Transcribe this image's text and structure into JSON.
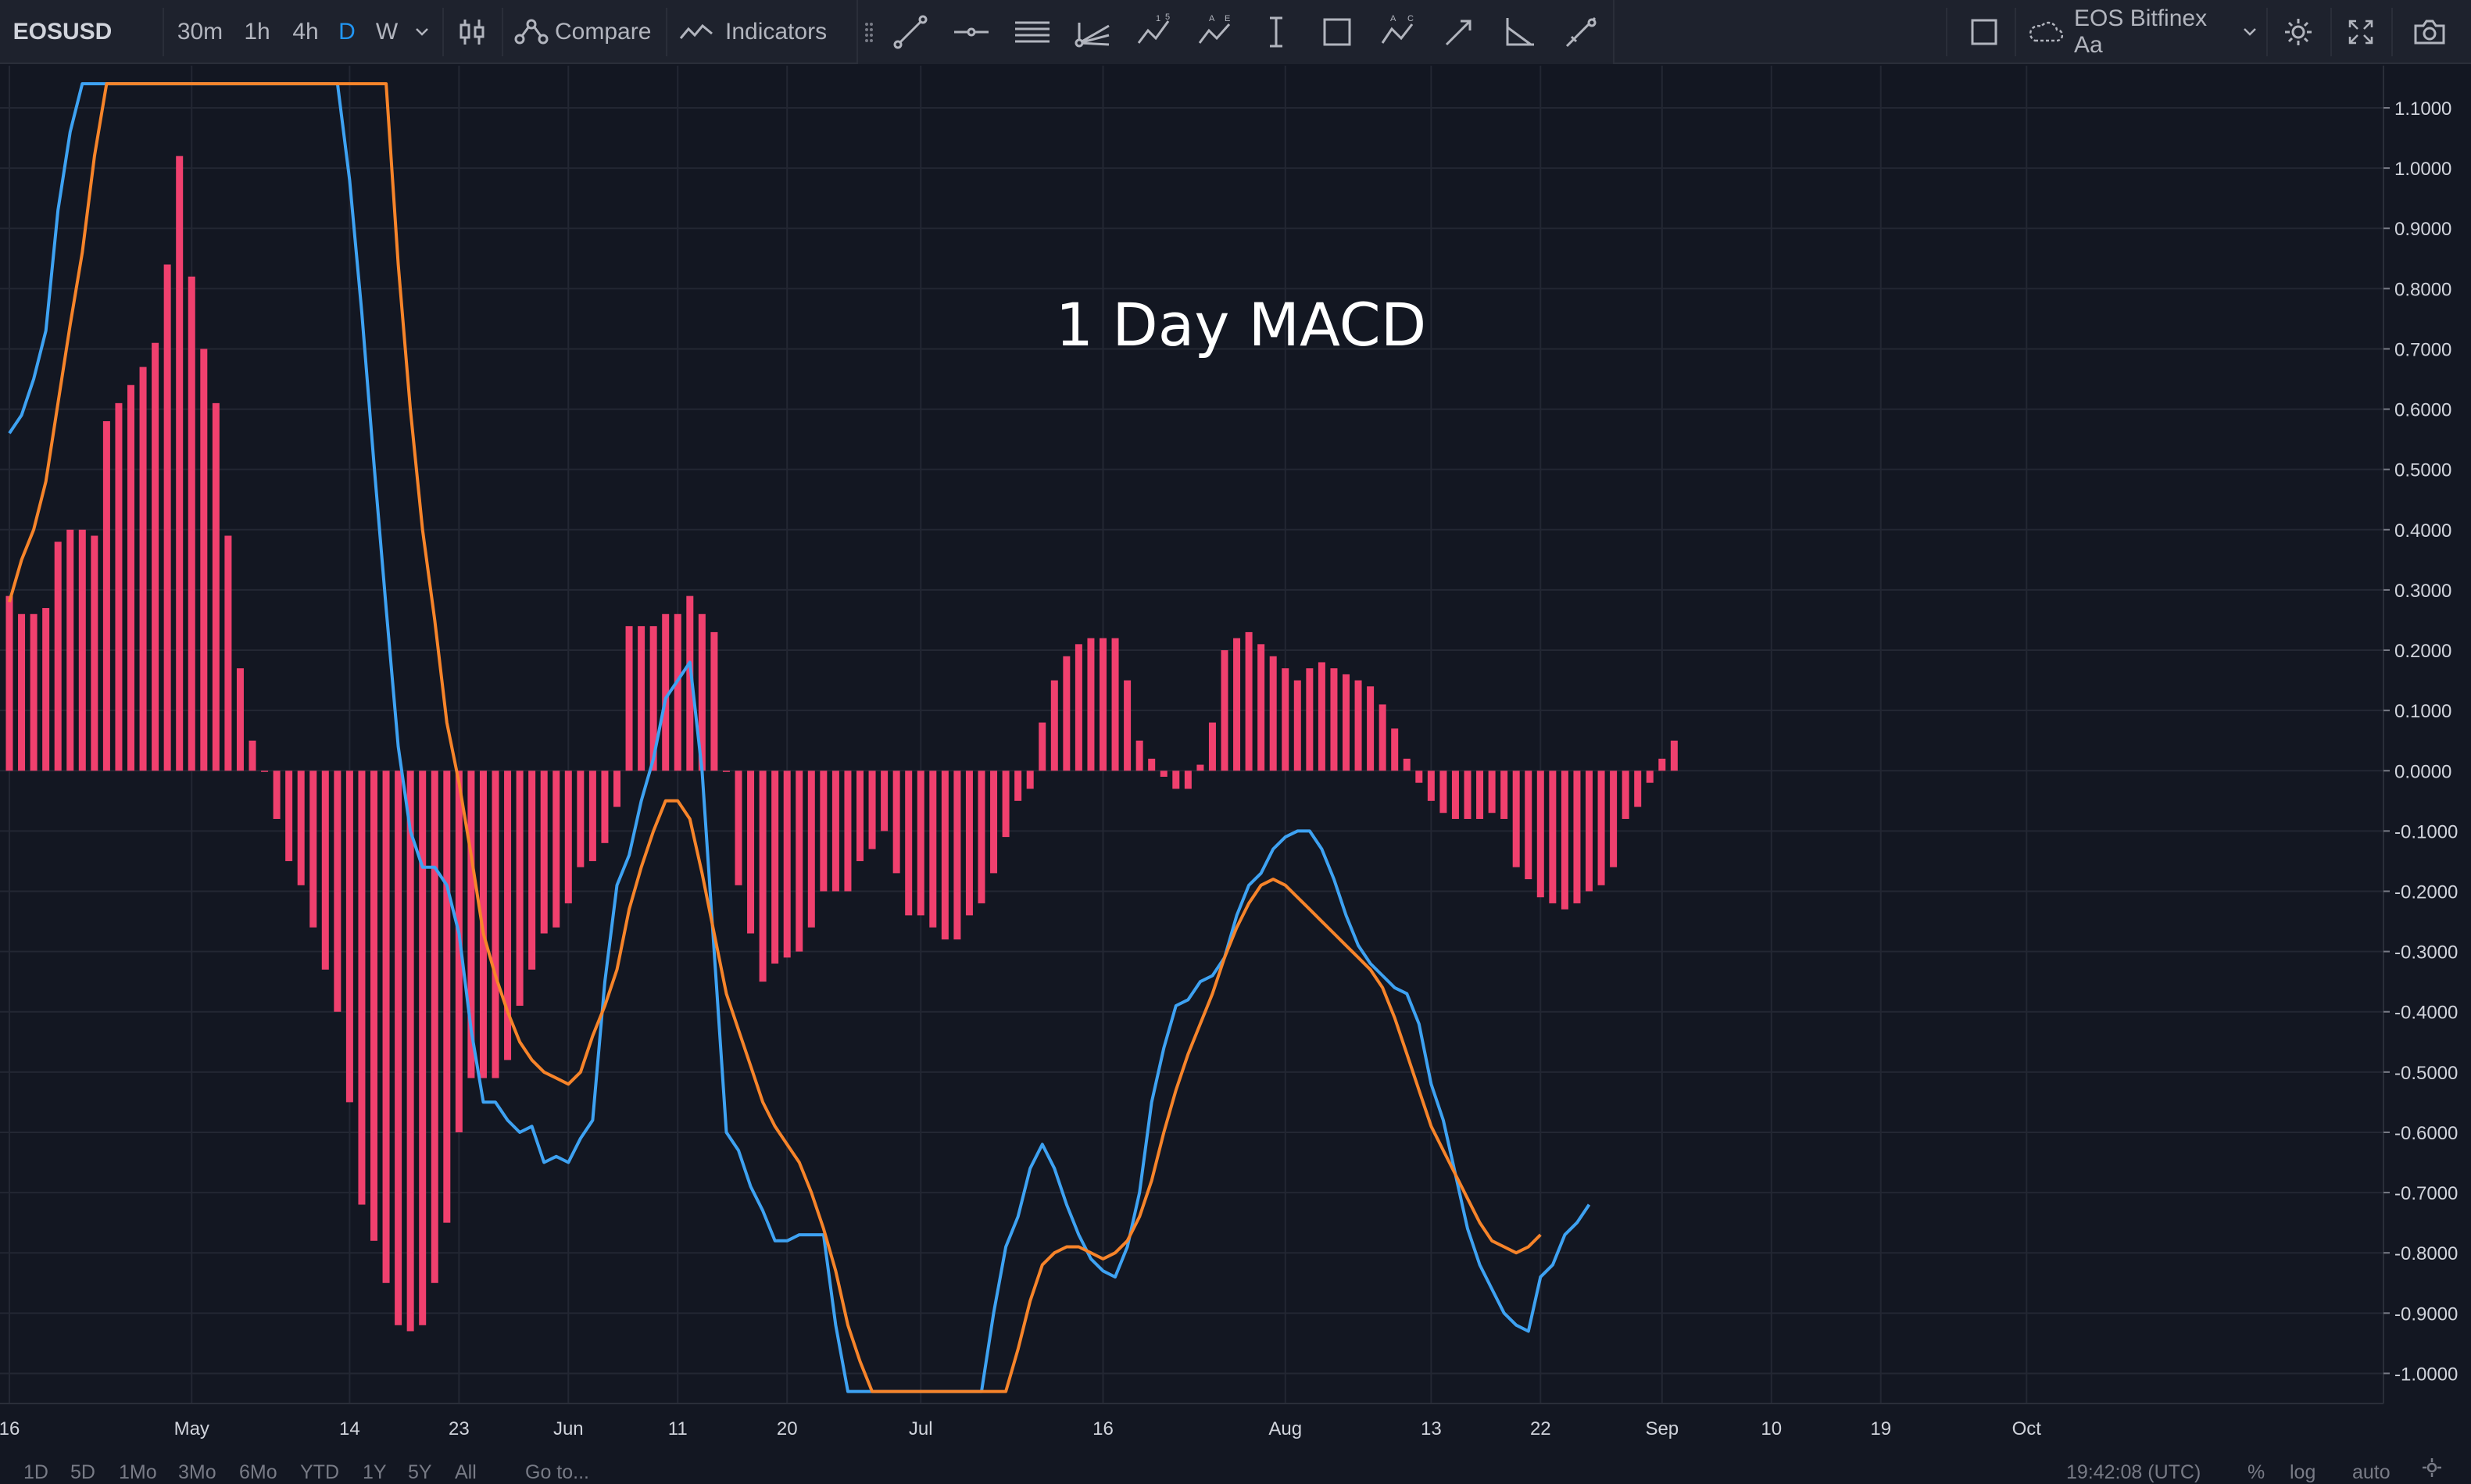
{
  "toolbar": {
    "symbol": "EOSUSD",
    "intervals": [
      "30m",
      "1h",
      "4h",
      "D",
      "W"
    ],
    "active_interval": "D",
    "compare_label": "Compare",
    "indicators_label": "Indicators",
    "source_label": "EOS Bitfinex Aa",
    "icons": [
      "dropdown-arrow-icon",
      "candles-icon",
      "compare-icon",
      "indicators-icon",
      "grip-icon",
      "trend-line-icon",
      "horizontal-line-icon",
      "parallel-channel-icon",
      "pitchfork-icon",
      "xabcd-pattern-icon",
      "abcde-pattern-icon",
      "price-range-icon",
      "rectangle-icon",
      "abc-pattern-icon",
      "arrow-icon",
      "angle-tool-icon",
      "brush-icon",
      "layout-icon",
      "cloud-icon",
      "settings-icon",
      "fullscreen-icon",
      "snapshot-icon"
    ]
  },
  "bottombar": {
    "ranges": [
      "1D",
      "5D",
      "1Mo",
      "3Mo",
      "6Mo",
      "YTD",
      "1Y",
      "5Y",
      "All"
    ],
    "goto_label": "Go to...",
    "time": "19:42:08 (UTC)",
    "percent_label": "%",
    "log_label": "log",
    "auto_label": "auto"
  },
  "colors": {
    "background": "#131722",
    "histogram": "#f0406e",
    "macd": "#3ea2f2",
    "signal": "#f7842a",
    "grid": "#232733"
  },
  "chart_data": {
    "type": "line",
    "title": "1 Day MACD",
    "ylim": [
      -1.05,
      1.17
    ],
    "xlim": [
      0,
      195
    ],
    "grid": true,
    "y_ticks": [
      "1.1000",
      "1.0000",
      "0.9000",
      "0.8000",
      "0.7000",
      "0.6000",
      "0.5000",
      "0.4000",
      "0.3000",
      "0.2000",
      "0.1000",
      "0.0000",
      "-0.1000",
      "-0.2000",
      "-0.3000",
      "-0.4000",
      "-0.5000",
      "-0.6000",
      "-0.7000",
      "-0.8000",
      "-0.9000",
      "-1.0000"
    ],
    "y_tick_values": [
      1.1,
      1.0,
      0.9,
      0.8,
      0.7,
      0.6,
      0.5,
      0.4,
      0.3,
      0.2,
      0.1,
      0.0,
      -0.1,
      -0.2,
      -0.3,
      -0.4,
      -0.5,
      -0.6,
      -0.7,
      -0.8,
      -0.9,
      -1.0
    ],
    "x_ticks": [
      "16",
      "May",
      "14",
      "23",
      "Jun",
      "11",
      "20",
      "Jul",
      "16",
      "Aug",
      "13",
      "22",
      "Sep",
      "10",
      "19",
      "Oct"
    ],
    "x_tick_positions": [
      0,
      15,
      28,
      37,
      46,
      55,
      64,
      75,
      90,
      105,
      117,
      126,
      136,
      145,
      154,
      166
    ],
    "histogram": [
      0.29,
      0.26,
      0.26,
      0.27,
      0.38,
      0.4,
      0.4,
      0.39,
      0.58,
      0.61,
      0.64,
      0.67,
      0.71,
      0.84,
      1.02,
      0.82,
      0.7,
      0.61,
      0.39,
      0.17,
      0.05,
      0.0,
      -0.08,
      -0.15,
      -0.19,
      -0.26,
      -0.33,
      -0.4,
      -0.55,
      -0.72,
      -0.78,
      -0.85,
      -0.92,
      -0.93,
      -0.92,
      -0.85,
      -0.75,
      -0.6,
      -0.51,
      -0.51,
      -0.51,
      -0.48,
      -0.39,
      -0.33,
      -0.27,
      -0.26,
      -0.22,
      -0.16,
      -0.15,
      -0.12,
      -0.06,
      0.24,
      0.24,
      0.24,
      0.26,
      0.26,
      0.29,
      0.26,
      0.23,
      0.0,
      -0.19,
      -0.27,
      -0.35,
      -0.32,
      -0.31,
      -0.3,
      -0.26,
      -0.2,
      -0.2,
      -0.2,
      -0.15,
      -0.13,
      -0.1,
      -0.17,
      -0.24,
      -0.24,
      -0.26,
      -0.28,
      -0.28,
      -0.24,
      -0.22,
      -0.17,
      -0.11,
      -0.05,
      -0.03,
      0.08,
      0.15,
      0.19,
      0.21,
      0.22,
      0.22,
      0.22,
      0.15,
      0.05,
      0.02,
      -0.01,
      -0.03,
      -0.03,
      0.01,
      0.08,
      0.2,
      0.22,
      0.23,
      0.21,
      0.19,
      0.17,
      0.15,
      0.17,
      0.18,
      0.17,
      0.16,
      0.15,
      0.14,
      0.11,
      0.07,
      0.02,
      -0.02,
      -0.05,
      -0.07,
      -0.08,
      -0.08,
      -0.08,
      -0.07,
      -0.08,
      -0.16,
      -0.18,
      -0.21,
      -0.22,
      -0.23,
      -0.22,
      -0.2,
      -0.19,
      -0.16,
      -0.08,
      -0.06,
      -0.02,
      0.02,
      0.05
    ],
    "series": [
      {
        "name": "",
        "points": [
          [
            0,
            0.56
          ],
          [
            1,
            0.59
          ],
          [
            2,
            0.65
          ],
          [
            3,
            0.73
          ],
          [
            4,
            0.93
          ],
          [
            5,
            1.06
          ],
          [
            6,
            1.14
          ],
          [
            27,
            1.14
          ],
          [
            28,
            0.98
          ],
          [
            29,
            0.76
          ],
          [
            30,
            0.51
          ],
          [
            31,
            0.27
          ],
          [
            32,
            0.04
          ],
          [
            33,
            -0.1
          ],
          [
            34,
            -0.16
          ],
          [
            35,
            -0.16
          ],
          [
            36,
            -0.19
          ],
          [
            37,
            -0.27
          ],
          [
            38,
            -0.43
          ],
          [
            39,
            -0.55
          ],
          [
            40,
            -0.55
          ],
          [
            41,
            -0.58
          ],
          [
            42,
            -0.6
          ],
          [
            43,
            -0.59
          ],
          [
            44,
            -0.65
          ],
          [
            45,
            -0.64
          ],
          [
            46,
            -0.65
          ],
          [
            47,
            -0.61
          ],
          [
            48,
            -0.58
          ],
          [
            49,
            -0.35
          ],
          [
            50,
            -0.19
          ],
          [
            51,
            -0.14
          ],
          [
            52,
            -0.05
          ],
          [
            53,
            0.02
          ],
          [
            54,
            0.12
          ],
          [
            55,
            0.15
          ],
          [
            56,
            0.18
          ],
          [
            57,
            0.0
          ],
          [
            58,
            -0.3
          ],
          [
            59,
            -0.6
          ],
          [
            60,
            -0.63
          ],
          [
            61,
            -0.69
          ],
          [
            62,
            -0.73
          ],
          [
            63,
            -0.78
          ],
          [
            64,
            -0.78
          ],
          [
            65,
            -0.77
          ],
          [
            66,
            -0.77
          ],
          [
            67,
            -0.77
          ],
          [
            68,
            -0.92
          ],
          [
            69,
            -1.03
          ],
          [
            80,
            -1.03
          ],
          [
            81,
            -0.9
          ],
          [
            82,
            -0.79
          ],
          [
            83,
            -0.74
          ],
          [
            84,
            -0.66
          ],
          [
            85,
            -0.62
          ],
          [
            86,
            -0.66
          ],
          [
            87,
            -0.72
          ],
          [
            88,
            -0.77
          ],
          [
            89,
            -0.81
          ],
          [
            90,
            -0.83
          ],
          [
            91,
            -0.84
          ],
          [
            92,
            -0.79
          ],
          [
            93,
            -0.7
          ],
          [
            94,
            -0.55
          ],
          [
            95,
            -0.46
          ],
          [
            96,
            -0.39
          ],
          [
            97,
            -0.38
          ],
          [
            98,
            -0.35
          ],
          [
            99,
            -0.34
          ],
          [
            100,
            -0.31
          ],
          [
            101,
            -0.24
          ],
          [
            102,
            -0.19
          ],
          [
            103,
            -0.17
          ],
          [
            104,
            -0.13
          ],
          [
            105,
            -0.11
          ],
          [
            106,
            -0.1
          ],
          [
            107,
            -0.1
          ],
          [
            108,
            -0.13
          ],
          [
            109,
            -0.18
          ],
          [
            110,
            -0.24
          ],
          [
            111,
            -0.29
          ],
          [
            112,
            -0.32
          ],
          [
            113,
            -0.34
          ],
          [
            114,
            -0.36
          ],
          [
            115,
            -0.37
          ],
          [
            116,
            -0.42
          ],
          [
            117,
            -0.52
          ],
          [
            118,
            -0.58
          ],
          [
            119,
            -0.67
          ],
          [
            120,
            -0.76
          ],
          [
            121,
            -0.82
          ],
          [
            122,
            -0.86
          ],
          [
            123,
            -0.9
          ],
          [
            124,
            -0.92
          ],
          [
            125,
            -0.93
          ],
          [
            126,
            -0.84
          ],
          [
            127,
            -0.82
          ],
          [
            128,
            -0.77
          ],
          [
            129,
            -0.75
          ],
          [
            130,
            -0.72
          ]
        ]
      },
      {
        "name": "",
        "points": [
          [
            0,
            0.28
          ],
          [
            1,
            0.35
          ],
          [
            2,
            0.4
          ],
          [
            3,
            0.48
          ],
          [
            4,
            0.61
          ],
          [
            5,
            0.74
          ],
          [
            6,
            0.86
          ],
          [
            7,
            1.02
          ],
          [
            8,
            1.14
          ],
          [
            31,
            1.14
          ],
          [
            32,
            0.84
          ],
          [
            33,
            0.6
          ],
          [
            34,
            0.4
          ],
          [
            35,
            0.25
          ],
          [
            36,
            0.08
          ],
          [
            37,
            -0.02
          ],
          [
            38,
            -0.14
          ],
          [
            39,
            -0.27
          ],
          [
            40,
            -0.34
          ],
          [
            41,
            -0.4
          ],
          [
            42,
            -0.45
          ],
          [
            43,
            -0.48
          ],
          [
            44,
            -0.5
          ],
          [
            45,
            -0.51
          ],
          [
            46,
            -0.52
          ],
          [
            47,
            -0.5
          ],
          [
            48,
            -0.44
          ],
          [
            49,
            -0.39
          ],
          [
            50,
            -0.33
          ],
          [
            51,
            -0.23
          ],
          [
            52,
            -0.16
          ],
          [
            53,
            -0.1
          ],
          [
            54,
            -0.05
          ],
          [
            55,
            -0.05
          ],
          [
            56,
            -0.08
          ],
          [
            57,
            -0.17
          ],
          [
            58,
            -0.27
          ],
          [
            59,
            -0.37
          ],
          [
            60,
            -0.43
          ],
          [
            61,
            -0.49
          ],
          [
            62,
            -0.55
          ],
          [
            63,
            -0.59
          ],
          [
            64,
            -0.62
          ],
          [
            65,
            -0.65
          ],
          [
            66,
            -0.7
          ],
          [
            67,
            -0.76
          ],
          [
            68,
            -0.83
          ],
          [
            69,
            -0.92
          ],
          [
            70,
            -0.98
          ],
          [
            71,
            -1.03
          ],
          [
            82,
            -1.03
          ],
          [
            83,
            -0.96
          ],
          [
            84,
            -0.88
          ],
          [
            85,
            -0.82
          ],
          [
            86,
            -0.8
          ],
          [
            87,
            -0.79
          ],
          [
            88,
            -0.79
          ],
          [
            89,
            -0.8
          ],
          [
            90,
            -0.81
          ],
          [
            91,
            -0.8
          ],
          [
            92,
            -0.78
          ],
          [
            93,
            -0.74
          ],
          [
            94,
            -0.68
          ],
          [
            95,
            -0.6
          ],
          [
            96,
            -0.53
          ],
          [
            97,
            -0.47
          ],
          [
            98,
            -0.42
          ],
          [
            99,
            -0.37
          ],
          [
            100,
            -0.31
          ],
          [
            101,
            -0.26
          ],
          [
            102,
            -0.22
          ],
          [
            103,
            -0.19
          ],
          [
            104,
            -0.18
          ],
          [
            105,
            -0.19
          ],
          [
            106,
            -0.21
          ],
          [
            107,
            -0.23
          ],
          [
            108,
            -0.25
          ],
          [
            109,
            -0.27
          ],
          [
            110,
            -0.29
          ],
          [
            111,
            -0.31
          ],
          [
            112,
            -0.33
          ],
          [
            113,
            -0.36
          ],
          [
            114,
            -0.41
          ],
          [
            115,
            -0.47
          ],
          [
            116,
            -0.53
          ],
          [
            117,
            -0.59
          ],
          [
            118,
            -0.63
          ],
          [
            119,
            -0.67
          ],
          [
            120,
            -0.71
          ],
          [
            121,
            -0.75
          ],
          [
            122,
            -0.78
          ],
          [
            123,
            -0.79
          ],
          [
            124,
            -0.8
          ],
          [
            125,
            -0.79
          ],
          [
            126,
            -0.77
          ]
        ]
      }
    ]
  }
}
